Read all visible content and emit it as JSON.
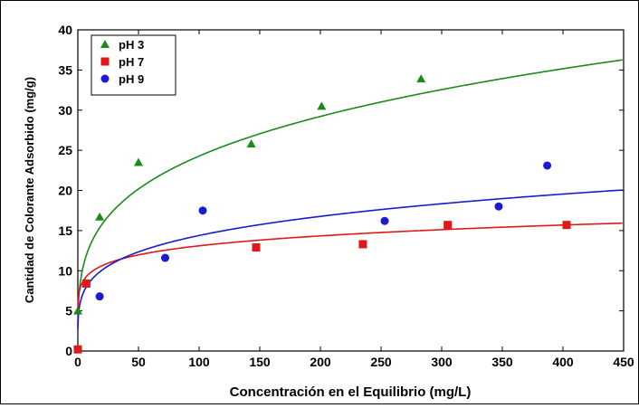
{
  "chart_data": {
    "type": "scatter",
    "title": "",
    "xlabel": "Concentración en el Equilibrio (mg/L)",
    "ylabel": "Cantidad de Colorante Adsorbido (mg/g)",
    "xlim": [
      0,
      450
    ],
    "ylim": [
      0,
      40
    ],
    "x_ticks": [
      "0",
      "50",
      "100",
      "150",
      "200",
      "250",
      "300",
      "350",
      "400",
      "450"
    ],
    "y_ticks": [
      "0",
      "5",
      "10",
      "15",
      "20",
      "25",
      "30",
      "35",
      "40"
    ],
    "grid": false,
    "legend_position": "top-left",
    "series": [
      {
        "name": "pH 3",
        "marker": "triangle",
        "color": "#1a8a1a",
        "points": [
          [
            0,
            5.0
          ],
          [
            18,
            16.7
          ],
          [
            50,
            23.5
          ],
          [
            143,
            25.8
          ],
          [
            201,
            30.5
          ],
          [
            283,
            33.9
          ]
        ],
        "fit": {
          "model": "freundlich",
          "K": 7.1,
          "n": 0.267
        }
      },
      {
        "name": "pH 7",
        "marker": "square",
        "color": "#e01818",
        "points": [
          [
            0,
            0.2
          ],
          [
            7,
            8.4
          ],
          [
            147,
            12.9
          ],
          [
            235,
            13.3
          ],
          [
            305,
            15.7
          ],
          [
            403,
            15.7
          ]
        ],
        "fit": {
          "model": "freundlich",
          "K": 7.2,
          "n": 0.13
        }
      },
      {
        "name": "pH 9",
        "marker": "circle",
        "color": "#1a1ad0",
        "points": [
          [
            18,
            6.8
          ],
          [
            72,
            11.6
          ],
          [
            103,
            17.5
          ],
          [
            253,
            16.2
          ],
          [
            347,
            18.0
          ],
          [
            387,
            23.1
          ]
        ],
        "fit": {
          "model": "freundlich",
          "K": 5.2,
          "n": 0.221
        }
      }
    ]
  }
}
